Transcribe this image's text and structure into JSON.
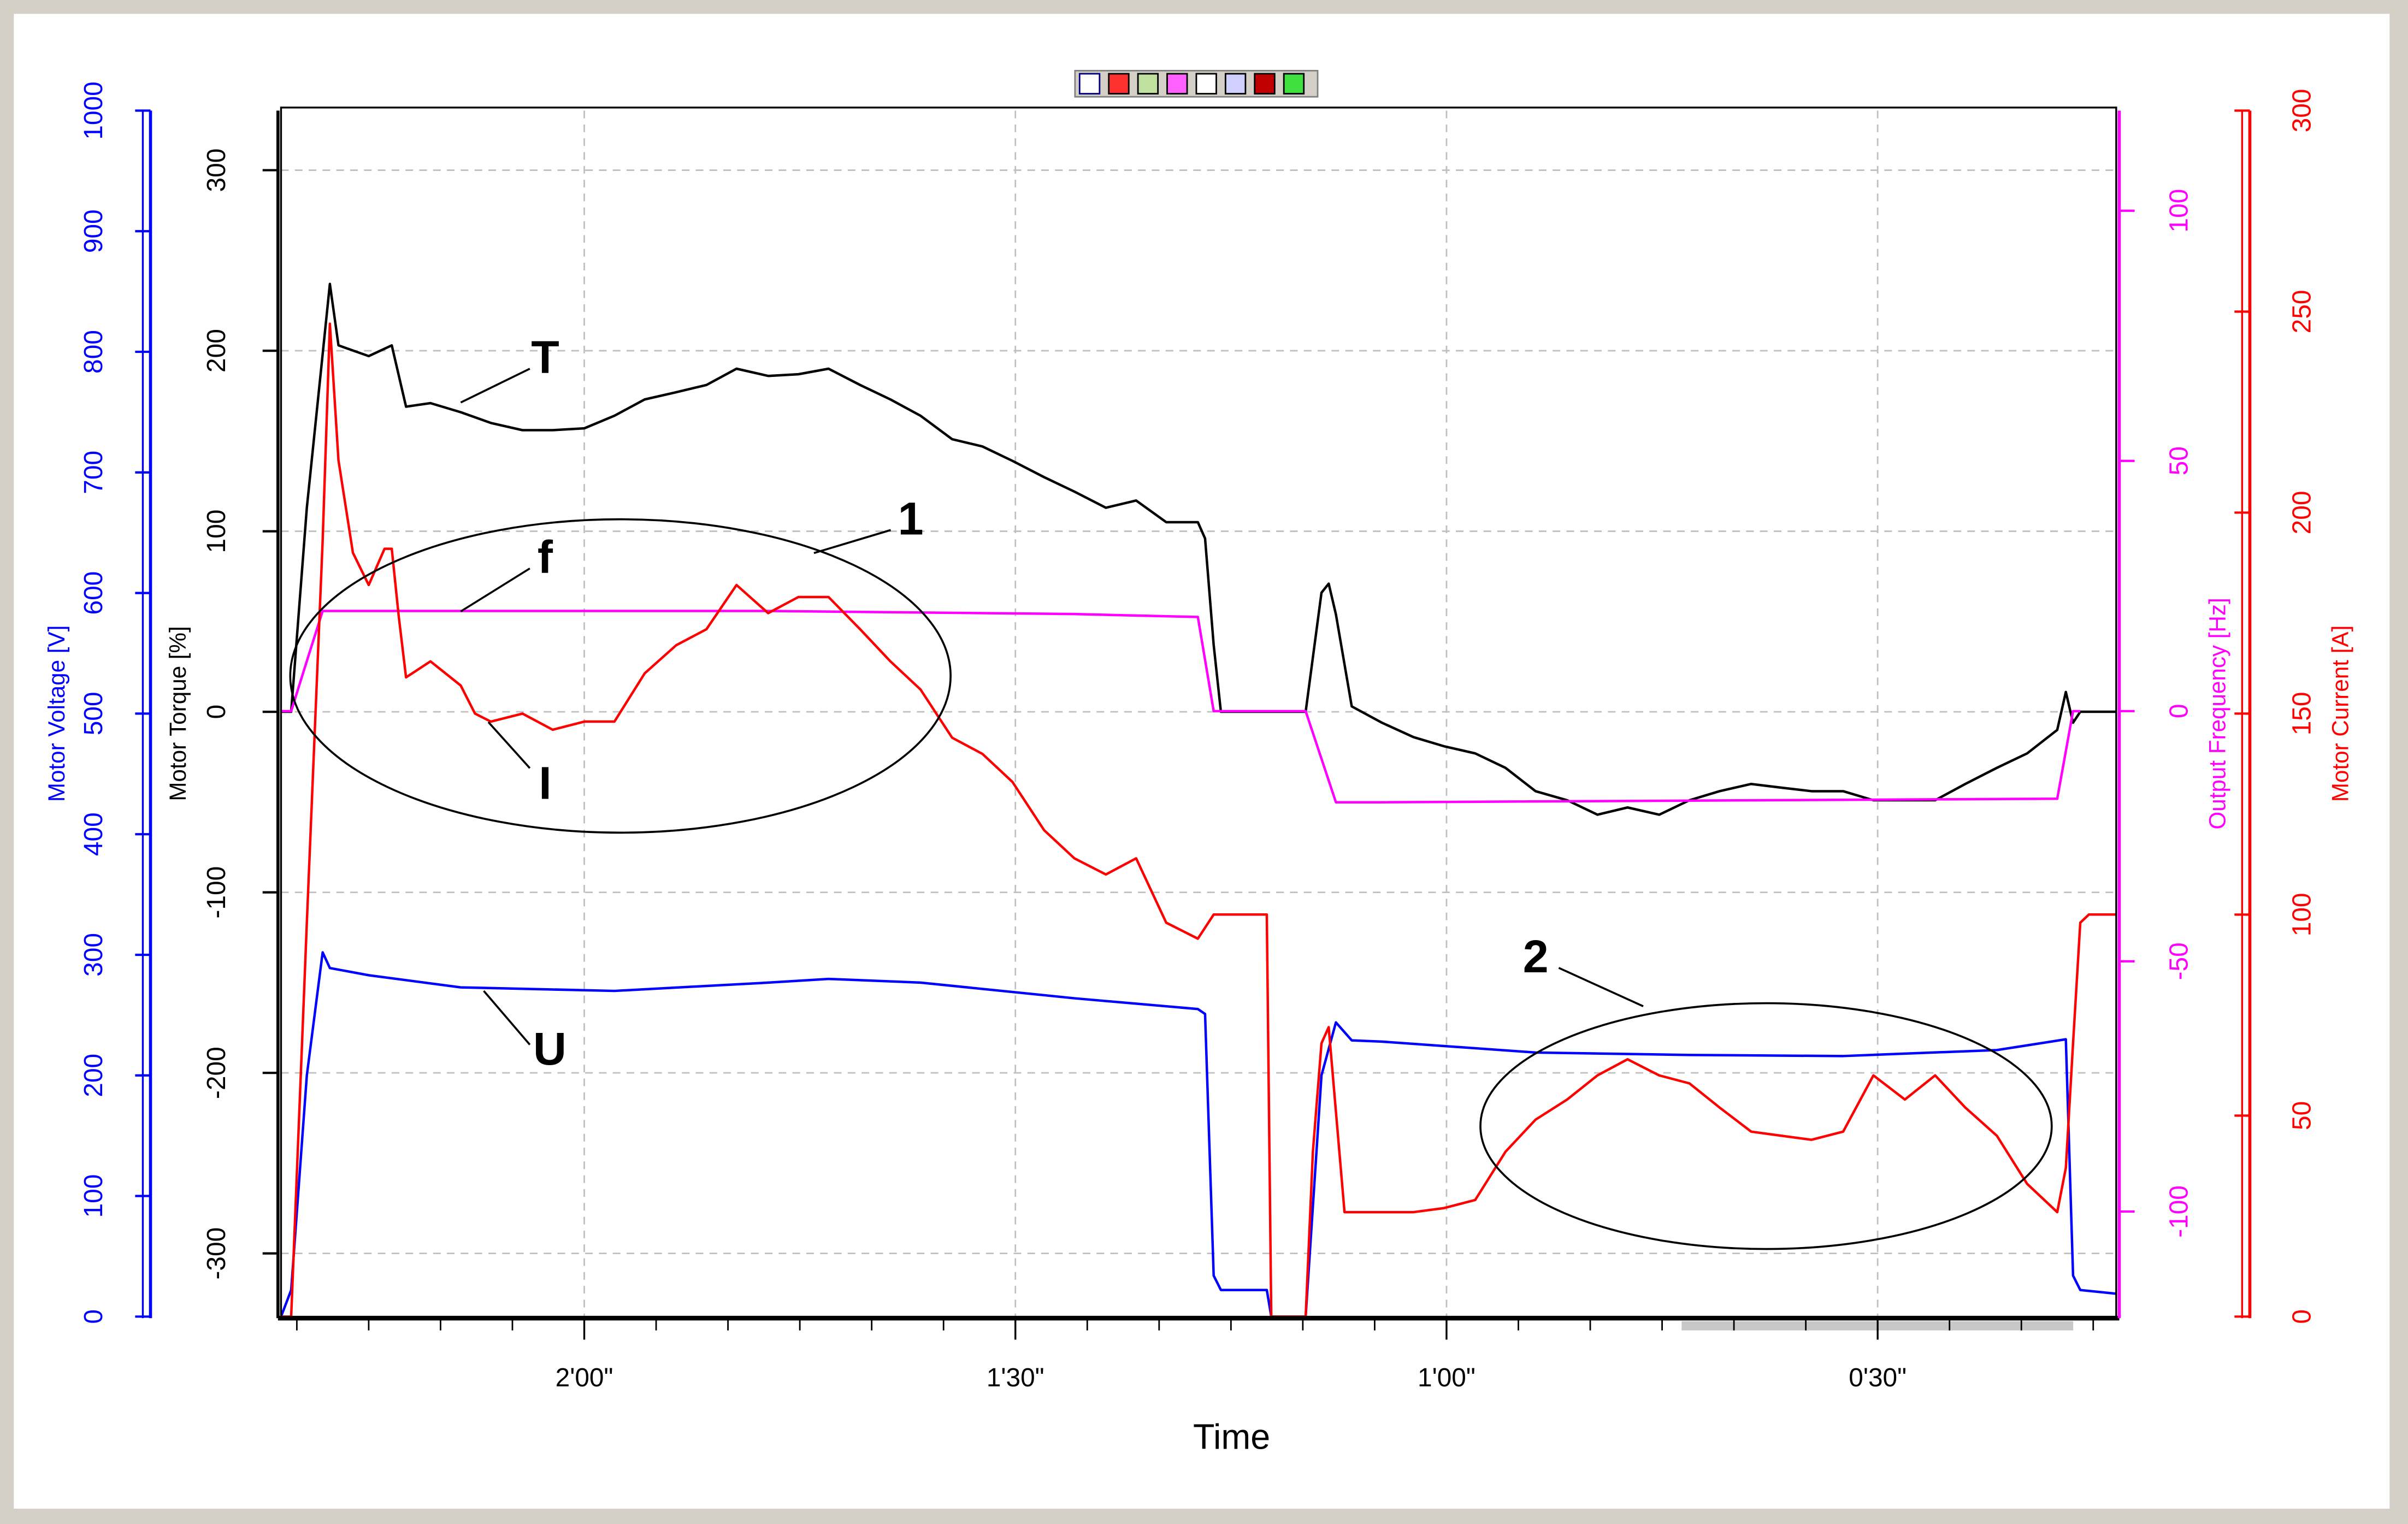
{
  "chart_data": {
    "type": "line",
    "xlabel": "Time",
    "xlim": [
      141.1,
      13.4
    ],
    "xticks": [
      {
        "value": 120,
        "label": "2'00\""
      },
      {
        "value": 90,
        "label": "1'30\""
      },
      {
        "value": 60,
        "label": "1'00\""
      },
      {
        "value": 30,
        "label": "0'30\""
      }
    ],
    "xminor_ticks": [
      140,
      135,
      130,
      125,
      115,
      110,
      105,
      100,
      95,
      85,
      80,
      75,
      70,
      65,
      55,
      50,
      45,
      40,
      35,
      25,
      20,
      15
    ],
    "grid": true,
    "group_annotations": [
      "1",
      "2"
    ],
    "series": [
      {
        "axis_label": "Motor Voltage [V]",
        "annotation": "U",
        "color": "#0000ff",
        "ylim": [
          0,
          1000
        ],
        "yticks": [
          0,
          100,
          200,
          300,
          400,
          500,
          600,
          700,
          800,
          900,
          1000
        ],
        "x": [
          141.1,
          140.4,
          139.3,
          138.2,
          137.7,
          135.0,
          128.6,
          117.9,
          107.2,
          103.0,
          96.6,
          85.9,
          77.3,
          76.8,
          76.2,
          75.7,
          72.5,
          72.2,
          69.8,
          68.7,
          67.7,
          66.6,
          64.5,
          53.8,
          43.1,
          32.4,
          21.7,
          16.9,
          16.4,
          15.9,
          13.4
        ],
        "values": [
          0,
          22,
          200,
          302,
          289,
          283,
          273,
          270,
          277,
          280,
          277,
          264,
          255,
          251,
          34,
          22,
          22,
          0,
          0,
          200,
          244,
          229,
          228,
          219,
          217,
          216,
          221,
          230,
          34,
          22,
          19
        ]
      },
      {
        "axis_label": "Motor Torque [%]",
        "annotation": "T",
        "color": "#000000",
        "ylim": [
          -335,
          333
        ],
        "yticks": [
          -300,
          -200,
          -100,
          0,
          100,
          200,
          300
        ],
        "x": [
          141.1,
          140.4,
          139.3,
          138.2,
          137.7,
          137.1,
          135.0,
          133.4,
          132.4,
          130.7,
          128.6,
          126.5,
          124.3,
          122.2,
          120.0,
          117.9,
          115.8,
          113.6,
          111.5,
          109.4,
          107.2,
          105.1,
          103.0,
          100.8,
          98.7,
          96.6,
          94.4,
          92.3,
          90.2,
          88.0,
          85.9,
          83.7,
          81.6,
          79.5,
          77.3,
          76.8,
          76.2,
          75.7,
          69.8,
          68.7,
          68.2,
          67.7,
          66.6,
          64.5,
          62.3,
          60.2,
          58.0,
          55.9,
          53.8,
          51.6,
          49.5,
          47.4,
          45.2,
          43.1,
          41.0,
          38.8,
          36.7,
          34.6,
          32.4,
          30.3,
          28.1,
          26.0,
          23.9,
          21.7,
          19.6,
          17.5,
          16.9,
          16.4,
          15.9,
          13.4
        ],
        "values": [
          0,
          0,
          113,
          198,
          237,
          203,
          197,
          203,
          169,
          171,
          166,
          160,
          156,
          156,
          157,
          164,
          173,
          177,
          181,
          190,
          186,
          187,
          190,
          181,
          173,
          164,
          151,
          147,
          139,
          130,
          122,
          113,
          117,
          105,
          105,
          96,
          37,
          0,
          0,
          66,
          71,
          54,
          3,
          -6,
          -14,
          -19,
          -23,
          -31,
          -44,
          -49,
          -57,
          -53,
          -57,
          -49,
          -44,
          -40,
          -42,
          -44,
          -44,
          -49,
          -49,
          -49,
          -40,
          -31,
          -23,
          -10,
          11,
          -6,
          0,
          0
        ]
      },
      {
        "axis_label": "Output Frequency [Hz]",
        "annotation": "f",
        "color": "#ff00ff",
        "ylim": [
          -121,
          120
        ],
        "yticks": [
          -100,
          -50,
          0,
          50,
          100
        ],
        "x": [
          141.1,
          140.4,
          139.3,
          138.2,
          128.6,
          107.2,
          85.9,
          77.3,
          76.2,
          69.8,
          67.7,
          64.5,
          17.5,
          16.4,
          15.9
        ],
        "values": [
          0,
          0,
          10,
          20,
          20,
          20,
          19.4,
          18.8,
          0,
          0,
          -18.2,
          -18.2,
          -17.5,
          0,
          0
        ]
      },
      {
        "axis_label": "Motor Current [A]",
        "annotation": "I",
        "color": "#ff0000",
        "ylim": [
          0,
          300
        ],
        "yticks": [
          0,
          50,
          100,
          150,
          200,
          250,
          300
        ],
        "x": [
          141.1,
          140.4,
          139.3,
          138.2,
          137.7,
          137.1,
          136.1,
          135.0,
          133.9,
          133.4,
          132.9,
          132.4,
          130.7,
          128.6,
          127.6,
          126.5,
          124.3,
          122.2,
          120.0,
          117.9,
          115.8,
          113.6,
          111.5,
          109.4,
          107.2,
          105.1,
          103.0,
          100.8,
          98.7,
          96.6,
          94.4,
          92.3,
          90.2,
          88.0,
          85.9,
          83.7,
          81.6,
          79.5,
          77.3,
          76.2,
          75.2,
          72.5,
          72.2,
          69.8,
          69.3,
          68.7,
          68.2,
          67.1,
          64.5,
          62.3,
          60.2,
          58.0,
          55.9,
          53.8,
          51.6,
          49.5,
          47.4,
          45.2,
          43.1,
          41.0,
          38.8,
          36.7,
          34.6,
          32.4,
          30.3,
          28.1,
          26.0,
          23.9,
          21.7,
          19.6,
          17.5,
          16.9,
          16.4,
          15.9,
          15.3,
          13.4
        ],
        "values": [
          0,
          0,
          98,
          193,
          247,
          213,
          190,
          182,
          191,
          191,
          174,
          159,
          163,
          157,
          150,
          148,
          150,
          146,
          148,
          148,
          160,
          167,
          171,
          182,
          175,
          179,
          179,
          171,
          163,
          156,
          144,
          140,
          133,
          121,
          114,
          110,
          114,
          98,
          94,
          100,
          100,
          100,
          0,
          0,
          41,
          68,
          72,
          26,
          26,
          26,
          27,
          29,
          41,
          49,
          54,
          60,
          64,
          60,
          58,
          52,
          46,
          45,
          44,
          46,
          60,
          54,
          60,
          52,
          45,
          33,
          26,
          37,
          68,
          98,
          100,
          100
        ]
      }
    ]
  }
}
